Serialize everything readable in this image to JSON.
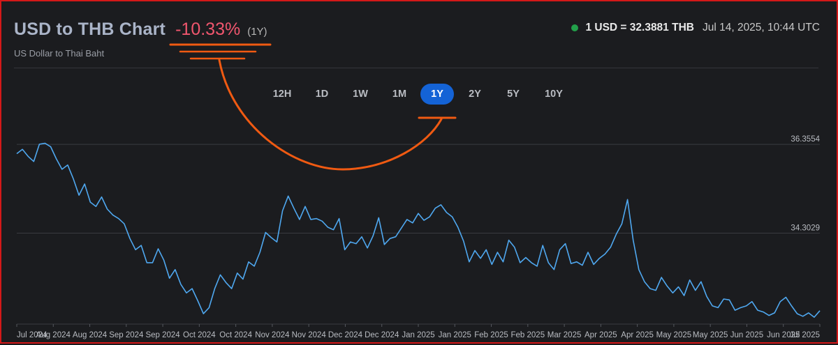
{
  "header": {
    "title": "USD to THB Chart",
    "change": "-10.33%",
    "period": "(1Y)",
    "subtitle": "US Dollar to Thai Baht",
    "rate": "1 USD = 32.3881 THB",
    "timestamp": "Jul 14, 2025, 10:44 UTC",
    "status_color": "#22a04a"
  },
  "range_buttons": [
    "12H",
    "1D",
    "1W",
    "1M",
    "1Y",
    "2Y",
    "5Y",
    "10Y"
  ],
  "active_range": "1Y",
  "colors": {
    "line": "#4fa8f0",
    "change_negative": "#f0566e",
    "annotation": "#f05a12",
    "active_button": "#1463d6"
  },
  "chart_data": {
    "type": "line",
    "title": "USD to THB Chart",
    "xlabel": "",
    "ylabel": "",
    "y_ticks": [
      "36.3554",
      "34.3029"
    ],
    "x_tick_labels": [
      "Jul 2024",
      "Aug 2024",
      "Aug 2024",
      "Sep 2024",
      "Sep 2024",
      "Oct 2024",
      "Oct 2024",
      "Nov 2024",
      "Nov 2024",
      "Dec 2024",
      "Dec 2024",
      "Jan 2025",
      "Jan 2025",
      "Feb 2025",
      "Feb 2025",
      "Mar 2025",
      "Apr 2025",
      "Apr 2025",
      "May 2025",
      "May 2025",
      "Jun 2025",
      "Jun 2025",
      "Jul 2025"
    ],
    "ylim": [
      32.2,
      36.6
    ],
    "grid": true,
    "series": [
      {
        "values": [
          36.14,
          36.24,
          36.08,
          35.96,
          36.36,
          36.38,
          36.3,
          36.02,
          35.78,
          35.88,
          35.56,
          35.18,
          35.44,
          35.02,
          34.92,
          35.14,
          34.86,
          34.72,
          34.64,
          34.52,
          34.18,
          33.92,
          34.02,
          33.62,
          33.62,
          33.94,
          33.68,
          33.26,
          33.46,
          33.12,
          32.92,
          33.02,
          32.74,
          32.44,
          32.58,
          33.02,
          33.34,
          33.16,
          33.02,
          33.38,
          33.24,
          33.64,
          33.54,
          33.86,
          34.32,
          34.2,
          34.1,
          34.82,
          35.16,
          34.88,
          34.62,
          34.92,
          34.62,
          34.64,
          34.58,
          34.44,
          34.38,
          34.64,
          33.92,
          34.1,
          34.06,
          34.22,
          33.96,
          34.24,
          34.66,
          34.04,
          34.18,
          34.22,
          34.42,
          34.62,
          34.54,
          34.76,
          34.6,
          34.68,
          34.88,
          34.96,
          34.78,
          34.68,
          34.44,
          34.12,
          33.64,
          33.9,
          33.72,
          33.92,
          33.58,
          33.86,
          33.64,
          34.14,
          33.98,
          33.62,
          33.74,
          33.62,
          33.54,
          34.02,
          33.62,
          33.46,
          33.92,
          34.06,
          33.6,
          33.64,
          33.56,
          33.86,
          33.58,
          33.72,
          33.82,
          33.98,
          34.28,
          34.52,
          35.08,
          34.14,
          33.46,
          33.18,
          33.02,
          32.98,
          33.28,
          33.08,
          32.92,
          33.06,
          32.86,
          33.22,
          32.98,
          33.18,
          32.84,
          32.62,
          32.58,
          32.78,
          32.76,
          32.52,
          32.58,
          32.62,
          32.72,
          32.52,
          32.48,
          32.4,
          32.46,
          32.72,
          32.82,
          32.62,
          32.44,
          32.38,
          32.46,
          32.36,
          32.51
        ]
      }
    ]
  }
}
